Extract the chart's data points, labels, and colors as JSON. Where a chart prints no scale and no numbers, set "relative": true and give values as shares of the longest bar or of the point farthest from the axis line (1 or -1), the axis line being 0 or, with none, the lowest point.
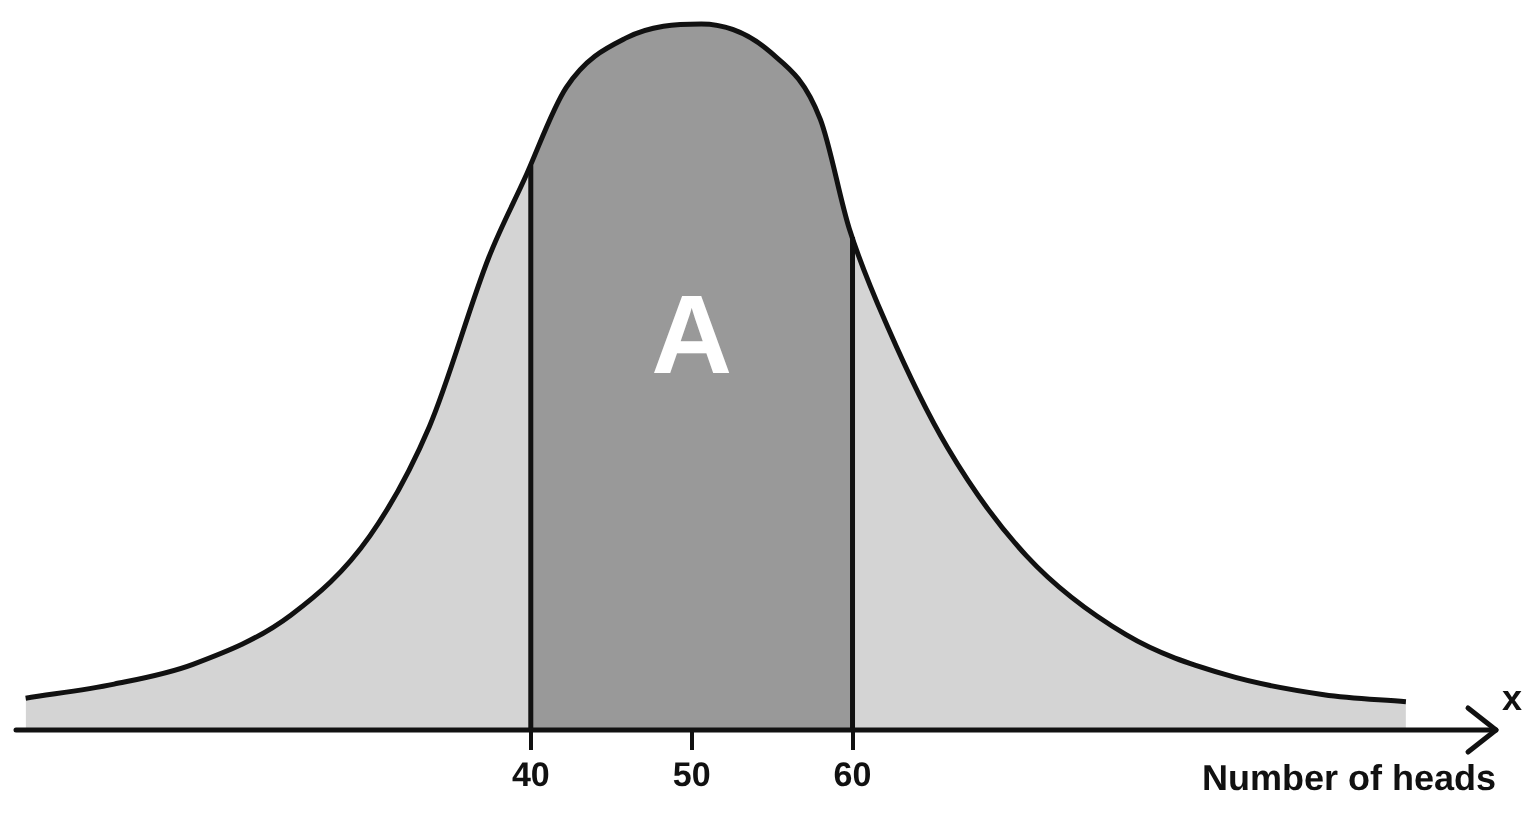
{
  "chart_data": {
    "type": "area",
    "relative": true,
    "xlabel": "Number of heads",
    "x": [
      8.6,
      14.1,
      19,
      25.1,
      30,
      33.7,
      37.4,
      39.6,
      42.2,
      45.9,
      50.6,
      54.9,
      58,
      59.8,
      62.2,
      65.9,
      70.8,
      77,
      83.1,
      89.3,
      94.4
    ],
    "series": [
      {
        "color": "#d4d4d4",
        "values": [
          0.045,
          0.065,
          0.093,
          0.163,
          0.275,
          0.43,
          0.67,
          0.78,
          0.91,
          0.98,
          1,
          0.96,
          0.865,
          0.71,
          0.57,
          0.4,
          0.247,
          0.135,
          0.079,
          0.05,
          0.04
        ]
      }
    ],
    "xlim": [
      8,
      100
    ],
    "xticks": [
      40,
      50,
      60
    ],
    "bands": [
      {
        "axis": "x",
        "from": 40,
        "to": 60,
        "label": "A"
      }
    ],
    "annotations": [
      "x"
    ]
  }
}
